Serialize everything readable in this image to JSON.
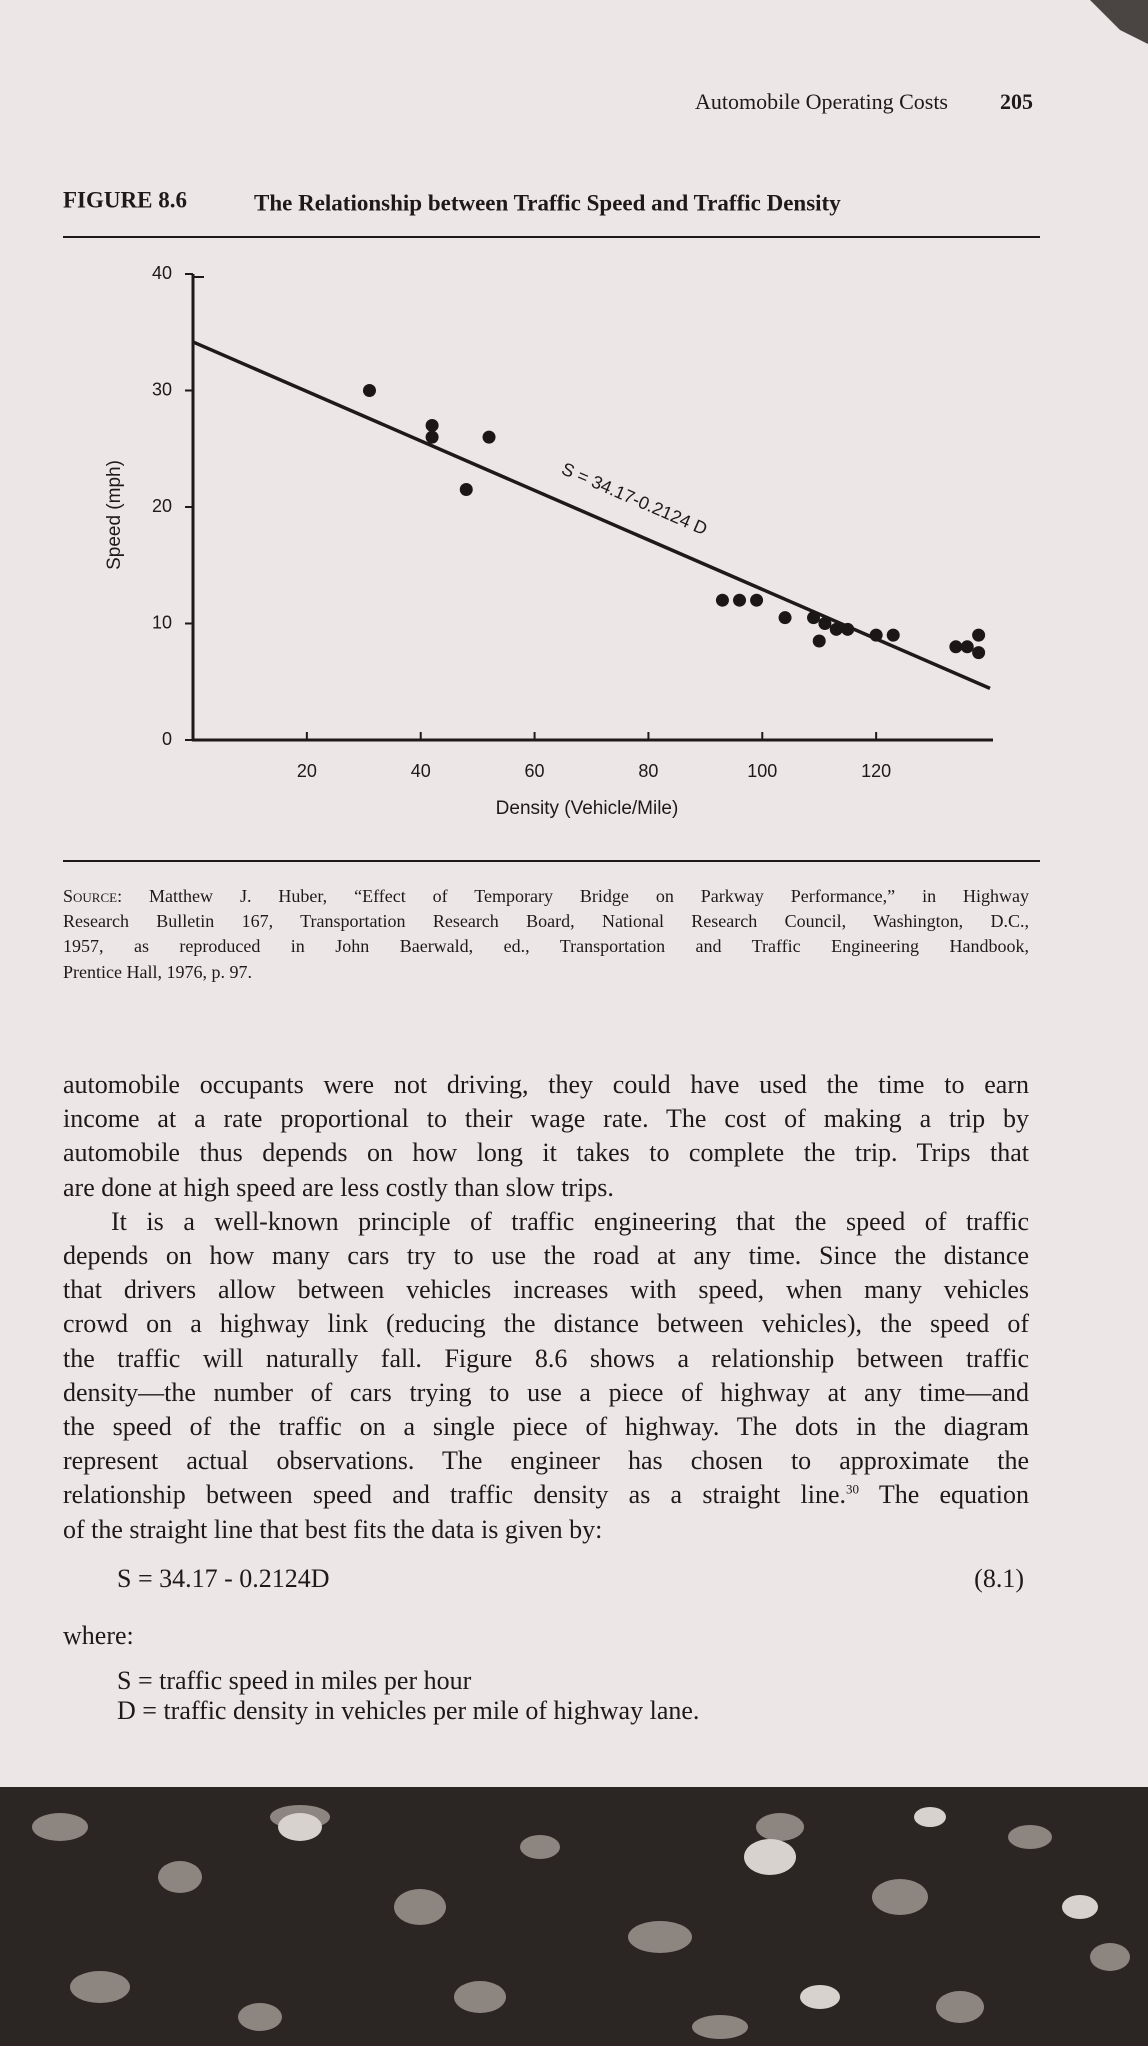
{
  "header": {
    "running_title": "Automobile Operating Costs",
    "page_number": "205"
  },
  "chart_data": {
    "type": "scatter",
    "figure_label": "FIGURE 8.6",
    "title": "The Relationship between Traffic Speed and Traffic Density",
    "xlabel": "Density (Vehicle/Mile)",
    "ylabel": "Speed (mph)",
    "annotation": "S = 34.17-0.2124 D",
    "x": [
      31,
      42,
      42,
      52,
      48,
      93,
      96,
      99,
      104,
      109,
      111,
      113,
      115,
      110,
      120,
      123,
      134,
      136,
      138,
      138
    ],
    "values": [
      30,
      27,
      26,
      26,
      21.5,
      12,
      12,
      12,
      10.5,
      10.5,
      10,
      9.5,
      9.5,
      8.5,
      9,
      9,
      8,
      8,
      9,
      7.5
    ],
    "color": "#1b1717",
    "fit": {
      "x": [
        0,
        140
      ],
      "values": [
        34.17,
        4.43
      ]
    },
    "xlim": [
      0,
      140
    ],
    "ylim": [
      0,
      40
    ],
    "xticks": [
      20,
      40,
      60,
      80,
      100,
      120
    ],
    "yticks": [
      0,
      10,
      20,
      30,
      40
    ],
    "grid": false
  },
  "source": {
    "label": "Source:",
    "lines": [
      "Matthew J. Huber, “Effect of Temporary Bridge on Parkway Performance,” in Highway",
      "Research Bulletin 167, Transportation Research Board, National Research Council, Washington, D.C.,",
      "1957, as reproduced in John Baerwald, ed., Transportation and Traffic Engineering Handbook,",
      "Prentice Hall, 1976, p. 97."
    ]
  },
  "body": {
    "paragraphs": [
      {
        "lines": [
          "automobile occupants were not driving, they could have used the time to earn",
          "income at a rate proportional to their wage rate. The cost of making a trip by",
          "automobile thus depends on how long it takes to complete the trip. Trips that",
          "are done at high speed are less costly than slow trips."
        ]
      },
      {
        "lines": [
          "It is a well-known principle of traffic engineering that the speed of traffic",
          "depends on how many cars try to use the road at any time. Since the distance",
          "that drivers allow between vehicles increases with speed, when many vehicles",
          "crowd on a highway link (reducing the distance between vehicles), the speed of",
          "the traffic will naturally fall. Figure 8.6 shows a relationship between traffic",
          "density—the number of cars trying to use a piece of highway at any time—and",
          "the speed of the traffic on a single piece of highway. The dots in the diagram",
          "represent actual observations. The engineer has chosen to approximate the",
          {
            "before": "relationship between speed and traffic density as a straight line.",
            "note": "30",
            "after": " The equation"
          },
          "of the straight line that best fits the data is given by:"
        ]
      }
    ],
    "equation": {
      "text": "S = 34.17 - 0.2124D",
      "number": "(8.1)"
    },
    "where": "where:",
    "definitions": [
      "S = traffic speed in miles per hour",
      "D = traffic density in vehicles per mile of highway lane."
    ]
  }
}
